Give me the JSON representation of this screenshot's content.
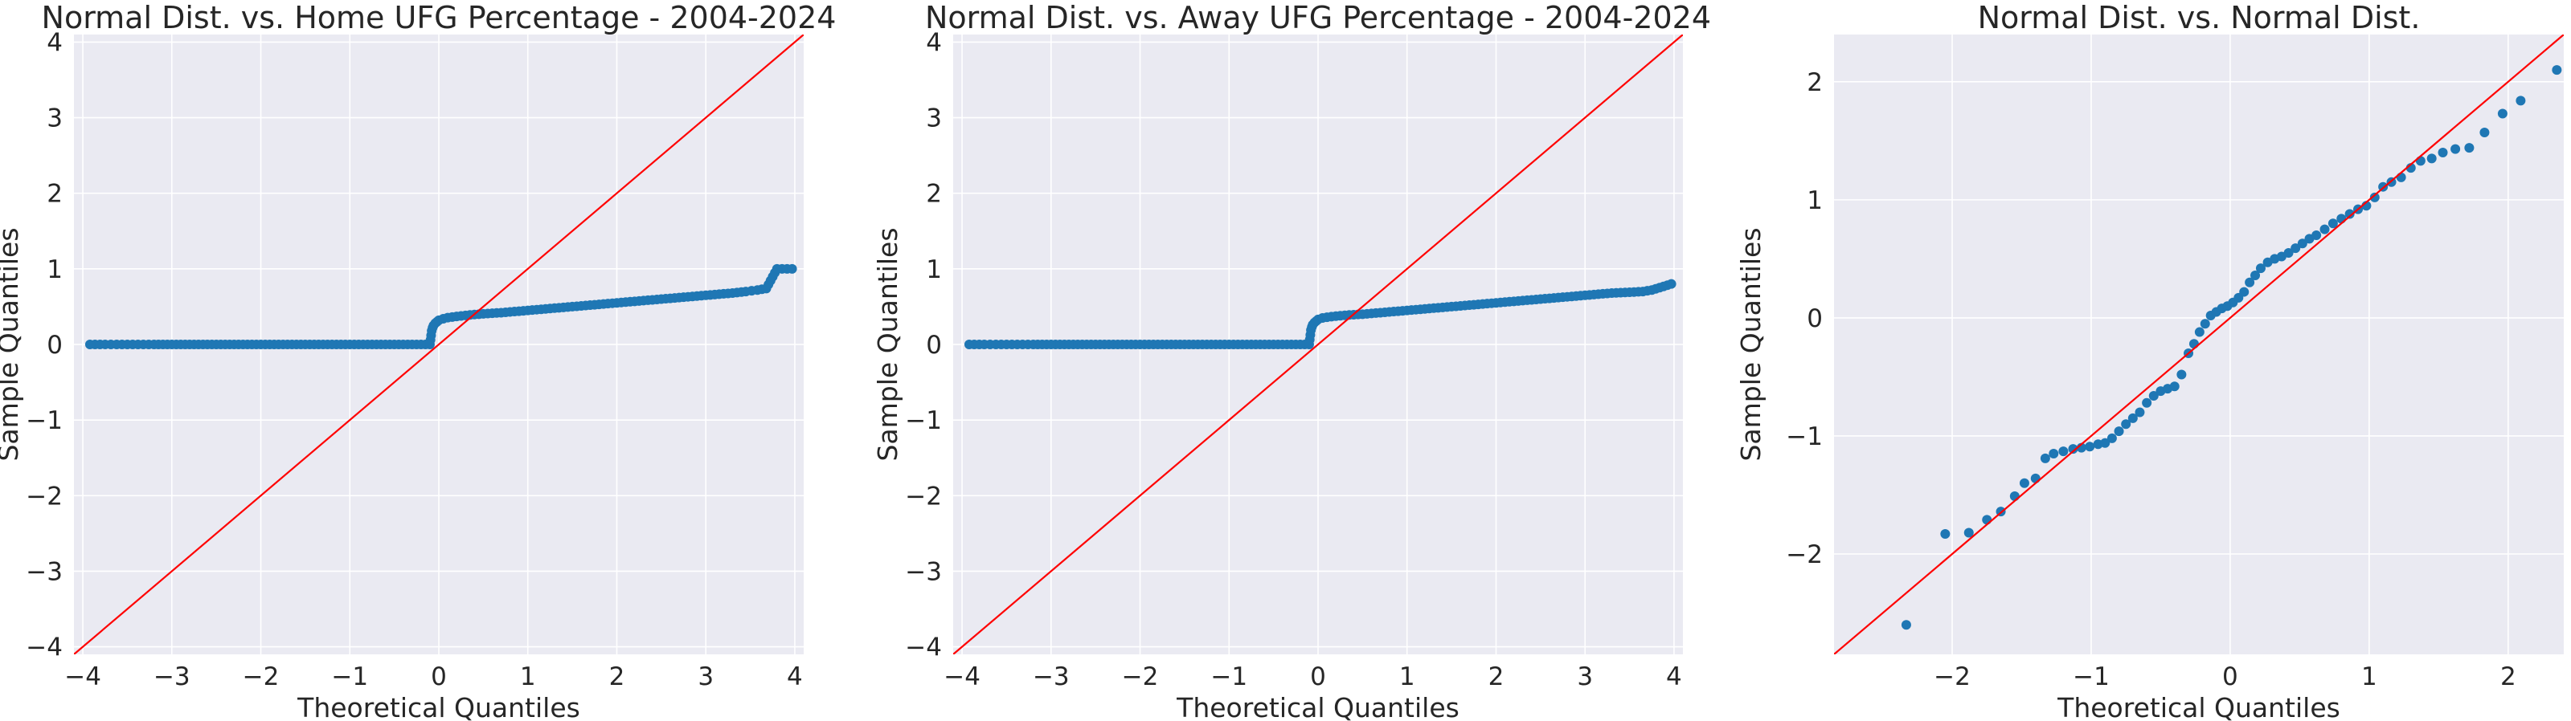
{
  "figure": {
    "background": "#ffffff",
    "axes_face": "#eaeaf2",
    "grid_color": "#ffffff",
    "point_color": "#1f77b4",
    "line_color": "#ff0000"
  },
  "chart_data": [
    {
      "type": "scatter",
      "title": "Normal Dist. vs. Home UFG Percentage - 2004-2024",
      "xlabel": "Theoretical Quantiles",
      "ylabel": "Sample Quantiles",
      "xlim": [
        -4.1,
        4.1
      ],
      "ylim": [
        -4.1,
        4.1
      ],
      "xticks": [
        -4,
        -3,
        -2,
        -1,
        0,
        1,
        2,
        3,
        4
      ],
      "yticks": [
        -4,
        -3,
        -2,
        -1,
        0,
        1,
        2,
        3,
        4
      ],
      "xtick_labels": [
        "−4",
        "−3",
        "−2",
        "−1",
        "0",
        "1",
        "2",
        "3",
        "4"
      ],
      "ytick_labels": [
        "−4",
        "−3",
        "−2",
        "−1",
        "0",
        "1",
        "2",
        "3",
        "4"
      ],
      "grid": true,
      "reference_line": [
        [
          -4.1,
          -4.1
        ],
        [
          4.1,
          4.1
        ]
      ],
      "points": [
        [
          -3.92,
          0.0
        ],
        [
          -3.75,
          0.0
        ],
        [
          -3.62,
          0.0
        ],
        [
          -3.5,
          0.0
        ],
        [
          -3.38,
          0.0
        ],
        [
          -3.2,
          0.0
        ],
        [
          -3.0,
          0.0
        ],
        [
          -2.8,
          0.0
        ],
        [
          -2.6,
          0.0
        ],
        [
          -2.4,
          0.0
        ],
        [
          -2.2,
          0.0
        ],
        [
          -2.0,
          0.0
        ],
        [
          -1.8,
          0.0
        ],
        [
          -1.6,
          0.0
        ],
        [
          -1.4,
          0.0
        ],
        [
          -1.2,
          0.0
        ],
        [
          -1.0,
          0.0
        ],
        [
          -0.8,
          0.0
        ],
        [
          -0.6,
          0.0
        ],
        [
          -0.4,
          0.0
        ],
        [
          -0.2,
          0.0
        ],
        [
          -0.1,
          0.0
        ],
        [
          -0.08,
          0.18
        ],
        [
          -0.07,
          0.22
        ],
        [
          -0.06,
          0.25
        ],
        [
          -0.04,
          0.28
        ],
        [
          -0.02,
          0.3
        ],
        [
          0.0,
          0.32
        ],
        [
          0.05,
          0.34
        ],
        [
          0.1,
          0.355
        ],
        [
          0.2,
          0.37
        ],
        [
          0.35,
          0.39
        ],
        [
          0.5,
          0.405
        ],
        [
          0.7,
          0.42
        ],
        [
          0.9,
          0.44
        ],
        [
          1.1,
          0.46
        ],
        [
          1.3,
          0.48
        ],
        [
          1.5,
          0.5
        ],
        [
          1.7,
          0.52
        ],
        [
          1.9,
          0.54
        ],
        [
          2.1,
          0.56
        ],
        [
          2.3,
          0.58
        ],
        [
          2.5,
          0.6
        ],
        [
          2.7,
          0.62
        ],
        [
          2.9,
          0.64
        ],
        [
          3.1,
          0.66
        ],
        [
          3.3,
          0.68
        ],
        [
          3.45,
          0.7
        ],
        [
          3.58,
          0.72
        ],
        [
          3.68,
          0.74
        ],
        [
          3.8,
          1.0
        ],
        [
          3.97,
          1.0
        ]
      ]
    },
    {
      "type": "scatter",
      "title": "Normal Dist. vs. Away UFG Percentage - 2004-2024",
      "xlabel": "Theoretical Quantiles",
      "ylabel": "Sample Quantiles",
      "xlim": [
        -4.1,
        4.1
      ],
      "ylim": [
        -4.1,
        4.1
      ],
      "xticks": [
        -4,
        -3,
        -2,
        -1,
        0,
        1,
        2,
        3,
        4
      ],
      "yticks": [
        -4,
        -3,
        -2,
        -1,
        0,
        1,
        2,
        3,
        4
      ],
      "xtick_labels": [
        "−4",
        "−3",
        "−2",
        "−1",
        "0",
        "1",
        "2",
        "3",
        "4"
      ],
      "ytick_labels": [
        "−4",
        "−3",
        "−2",
        "−1",
        "0",
        "1",
        "2",
        "3",
        "4"
      ],
      "grid": true,
      "reference_line": [
        [
          -4.1,
          -4.1
        ],
        [
          4.1,
          4.1
        ]
      ],
      "points": [
        [
          -3.92,
          0.0
        ],
        [
          -3.75,
          0.0
        ],
        [
          -3.62,
          0.0
        ],
        [
          -3.5,
          0.0
        ],
        [
          -3.38,
          0.0
        ],
        [
          -3.2,
          0.0
        ],
        [
          -3.0,
          0.0
        ],
        [
          -2.8,
          0.0
        ],
        [
          -2.6,
          0.0
        ],
        [
          -2.4,
          0.0
        ],
        [
          -2.2,
          0.0
        ],
        [
          -2.0,
          0.0
        ],
        [
          -1.8,
          0.0
        ],
        [
          -1.6,
          0.0
        ],
        [
          -1.4,
          0.0
        ],
        [
          -1.2,
          0.0
        ],
        [
          -1.0,
          0.0
        ],
        [
          -0.8,
          0.0
        ],
        [
          -0.6,
          0.0
        ],
        [
          -0.4,
          0.0
        ],
        [
          -0.2,
          0.0
        ],
        [
          -0.1,
          0.0
        ],
        [
          -0.08,
          0.19
        ],
        [
          -0.07,
          0.23
        ],
        [
          -0.06,
          0.26
        ],
        [
          -0.04,
          0.29
        ],
        [
          -0.02,
          0.31
        ],
        [
          0.0,
          0.33
        ],
        [
          0.05,
          0.35
        ],
        [
          0.1,
          0.36
        ],
        [
          0.2,
          0.375
        ],
        [
          0.35,
          0.39
        ],
        [
          0.5,
          0.4
        ],
        [
          0.7,
          0.42
        ],
        [
          0.9,
          0.44
        ],
        [
          1.1,
          0.46
        ],
        [
          1.3,
          0.48
        ],
        [
          1.5,
          0.5
        ],
        [
          1.7,
          0.52
        ],
        [
          1.9,
          0.54
        ],
        [
          2.1,
          0.56
        ],
        [
          2.3,
          0.58
        ],
        [
          2.5,
          0.6
        ],
        [
          2.7,
          0.62
        ],
        [
          2.9,
          0.64
        ],
        [
          3.1,
          0.66
        ],
        [
          3.3,
          0.68
        ],
        [
          3.5,
          0.69
        ],
        [
          3.65,
          0.7
        ],
        [
          3.75,
          0.72
        ],
        [
          3.97,
          0.8
        ]
      ]
    },
    {
      "type": "scatter",
      "title": "Normal Dist. vs. Normal Dist.",
      "xlabel": "Theoretical Quantiles",
      "ylabel": "Sample Quantiles",
      "xlim": [
        -2.85,
        2.4
      ],
      "ylim": [
        -2.85,
        2.4
      ],
      "xticks": [
        -2,
        -1,
        0,
        1,
        2
      ],
      "yticks": [
        -2,
        -1,
        0,
        1,
        2
      ],
      "xtick_labels": [
        "−2",
        "−1",
        "0",
        "1",
        "2"
      ],
      "ytick_labels": [
        "−2",
        "−1",
        "0",
        "1",
        "2"
      ],
      "grid": true,
      "reference_line": [
        [
          -2.85,
          -2.85
        ],
        [
          2.4,
          2.4
        ]
      ],
      "points": [
        [
          -2.33,
          -2.6
        ],
        [
          -2.05,
          -1.83
        ],
        [
          -1.88,
          -1.82
        ],
        [
          -1.75,
          -1.71
        ],
        [
          -1.65,
          -1.64
        ],
        [
          -1.55,
          -1.51
        ],
        [
          -1.48,
          -1.4
        ],
        [
          -1.4,
          -1.36
        ],
        [
          -1.33,
          -1.19
        ],
        [
          -1.27,
          -1.15
        ],
        [
          -1.2,
          -1.13
        ],
        [
          -1.13,
          -1.11
        ],
        [
          -1.07,
          -1.1
        ],
        [
          -1.01,
          -1.09
        ],
        [
          -0.95,
          -1.07
        ],
        [
          -0.9,
          -1.06
        ],
        [
          -0.85,
          -1.02
        ],
        [
          -0.8,
          -0.96
        ],
        [
          -0.75,
          -0.9
        ],
        [
          -0.7,
          -0.85
        ],
        [
          -0.65,
          -0.8
        ],
        [
          -0.6,
          -0.72
        ],
        [
          -0.55,
          -0.66
        ],
        [
          -0.5,
          -0.62
        ],
        [
          -0.45,
          -0.6
        ],
        [
          -0.4,
          -0.58
        ],
        [
          -0.35,
          -0.48
        ],
        [
          -0.3,
          -0.3
        ],
        [
          -0.26,
          -0.22
        ],
        [
          -0.22,
          -0.12
        ],
        [
          -0.18,
          -0.05
        ],
        [
          -0.14,
          0.02
        ],
        [
          -0.1,
          0.05
        ],
        [
          -0.06,
          0.08
        ],
        [
          -0.02,
          0.1
        ],
        [
          0.02,
          0.13
        ],
        [
          0.06,
          0.17
        ],
        [
          0.1,
          0.22
        ],
        [
          0.14,
          0.3
        ],
        [
          0.18,
          0.36
        ],
        [
          0.22,
          0.42
        ],
        [
          0.27,
          0.47
        ],
        [
          0.32,
          0.5
        ],
        [
          0.37,
          0.52
        ],
        [
          0.42,
          0.55
        ],
        [
          0.47,
          0.59
        ],
        [
          0.52,
          0.63
        ],
        [
          0.57,
          0.67
        ],
        [
          0.62,
          0.7
        ],
        [
          0.68,
          0.75
        ],
        [
          0.74,
          0.8
        ],
        [
          0.8,
          0.84
        ],
        [
          0.86,
          0.88
        ],
        [
          0.92,
          0.92
        ],
        [
          0.98,
          0.95
        ],
        [
          1.04,
          1.02
        ],
        [
          1.1,
          1.11
        ],
        [
          1.16,
          1.15
        ],
        [
          1.23,
          1.19
        ],
        [
          1.3,
          1.27
        ],
        [
          1.37,
          1.33
        ],
        [
          1.45,
          1.35
        ],
        [
          1.53,
          1.4
        ],
        [
          1.62,
          1.43
        ],
        [
          1.72,
          1.44
        ],
        [
          1.83,
          1.57
        ],
        [
          1.96,
          1.73
        ],
        [
          2.09,
          1.84
        ],
        [
          2.35,
          2.1
        ]
      ]
    }
  ]
}
